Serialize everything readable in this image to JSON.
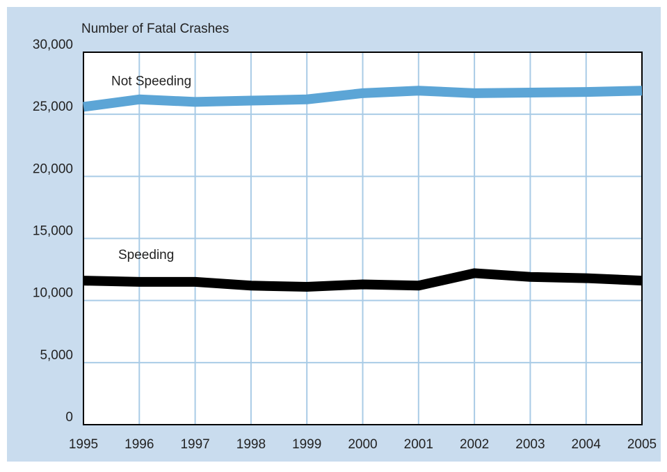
{
  "chart_data": {
    "type": "line",
    "y_axis_label": "Number of Fatal Crashes",
    "x": [
      1995,
      1996,
      1997,
      1998,
      1999,
      2000,
      2001,
      2002,
      2003,
      2004,
      2005
    ],
    "series": [
      {
        "name": "Not Speeding",
        "color": "#5ca5d6",
        "values": [
          25600,
          26200,
          26000,
          26100,
          26200,
          26700,
          26900,
          26700,
          26750,
          26800,
          26900
        ]
      },
      {
        "name": "Speeding",
        "color": "#000000",
        "values": [
          11600,
          11500,
          11500,
          11200,
          11100,
          11300,
          11200,
          12200,
          11900,
          11800,
          11600
        ]
      }
    ],
    "xlim": [
      1995,
      2005
    ],
    "xticks": [
      1995,
      1996,
      1997,
      1998,
      1999,
      2000,
      2001,
      2002,
      2003,
      2004,
      2005
    ],
    "ylim": [
      0,
      30000
    ],
    "yticks": [
      0,
      {
        "value": 5000,
        "label": "5,000"
      },
      {
        "value": 10000,
        "label": "10,000"
      },
      {
        "value": 15000,
        "label": "15,000"
      },
      {
        "value": 20000,
        "label": "20,000"
      },
      {
        "value": 25000,
        "label": "25,000"
      },
      {
        "value": 30000,
        "label": "30,000"
      }
    ],
    "grid": true,
    "grid_color": "#a9cbe6"
  }
}
